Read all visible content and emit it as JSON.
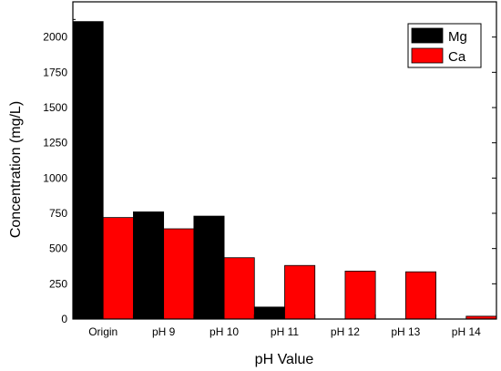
{
  "chart_data": {
    "type": "bar",
    "title": "",
    "xlabel": "pH Value",
    "ylabel": "Concentration (mg/L)",
    "categories": [
      "Origin",
      "pH 9",
      "pH 10",
      "pH 11",
      "pH 12",
      "pH 13",
      "pH 14"
    ],
    "series": [
      {
        "name": "Mg",
        "color": "#000000",
        "values": [
          2110,
          760,
          730,
          85,
          0,
          0,
          0
        ]
      },
      {
        "name": "Ca",
        "color": "#ff0000",
        "values": [
          720,
          640,
          435,
          380,
          340,
          335,
          20
        ]
      }
    ],
    "ylim": [
      0,
      2250
    ],
    "yticks": [
      0,
      250,
      500,
      750,
      1000,
      1250,
      1500,
      1750,
      2000
    ],
    "grid": false,
    "legend_position": "top-right"
  }
}
